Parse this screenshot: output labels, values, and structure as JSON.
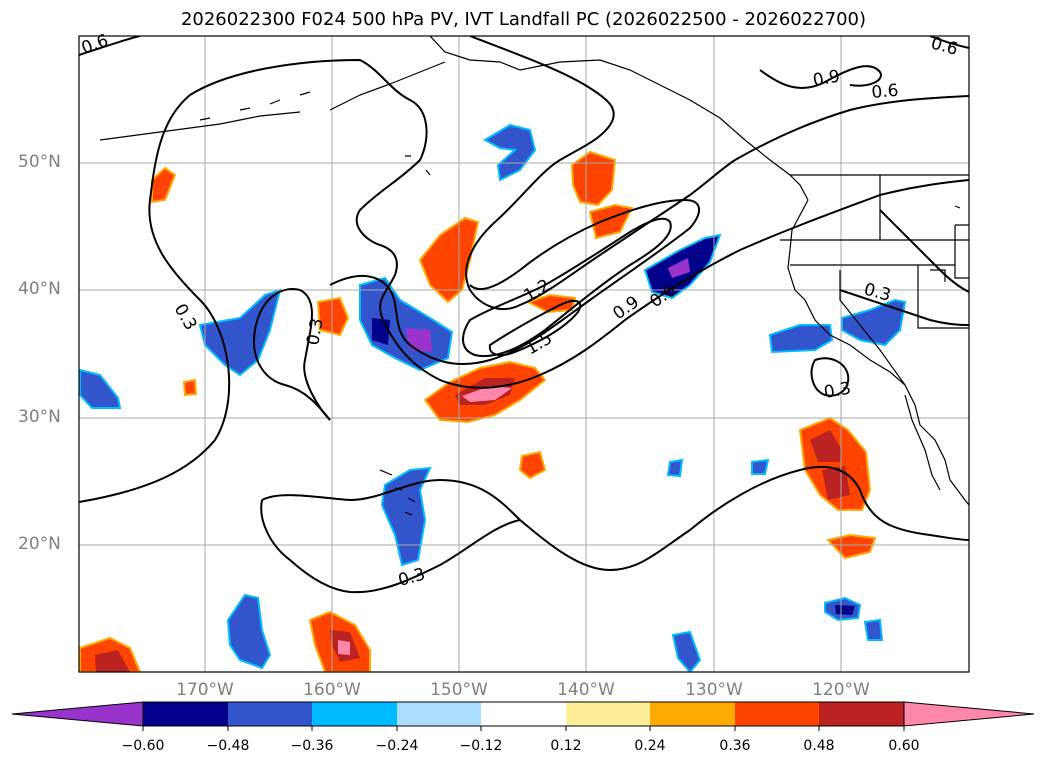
{
  "title": "2026022300 F024 500 hPa PV, IVT Landfall PC (2026022500 - 2026022700)",
  "latitude_labels": [
    "50°N",
    "40°N",
    "30°N",
    "20°N"
  ],
  "longitude_labels": [
    "170°W",
    "160°W",
    "150°W",
    "140°W",
    "130°W",
    "120°W"
  ],
  "colorbar": {
    "levels": [
      "−0.60",
      "−0.48",
      "−0.36",
      "−0.24",
      "−0.12",
      "0.12",
      "0.24",
      "0.36",
      "0.48",
      "0.60"
    ],
    "colors": [
      "#9933cc",
      "#00008b",
      "#3355cc",
      "#00bbff",
      "#aaddff",
      "#ffffff",
      "#ffee99",
      "#ffaa00",
      "#ff4400",
      "#bb2222",
      "#ff88aa"
    ]
  },
  "contour_labels": [
    "0.6",
    "0.6",
    "0.9",
    "0.6",
    "0.3",
    "0.3",
    "1.2",
    "1.5",
    "0.9",
    "0.6",
    "0.3",
    "0.3",
    "0.3"
  ],
  "colors": {
    "contour": "#000000",
    "grid": "#aaaaaa",
    "coast": "#000000",
    "axis_label": "#808080"
  }
}
